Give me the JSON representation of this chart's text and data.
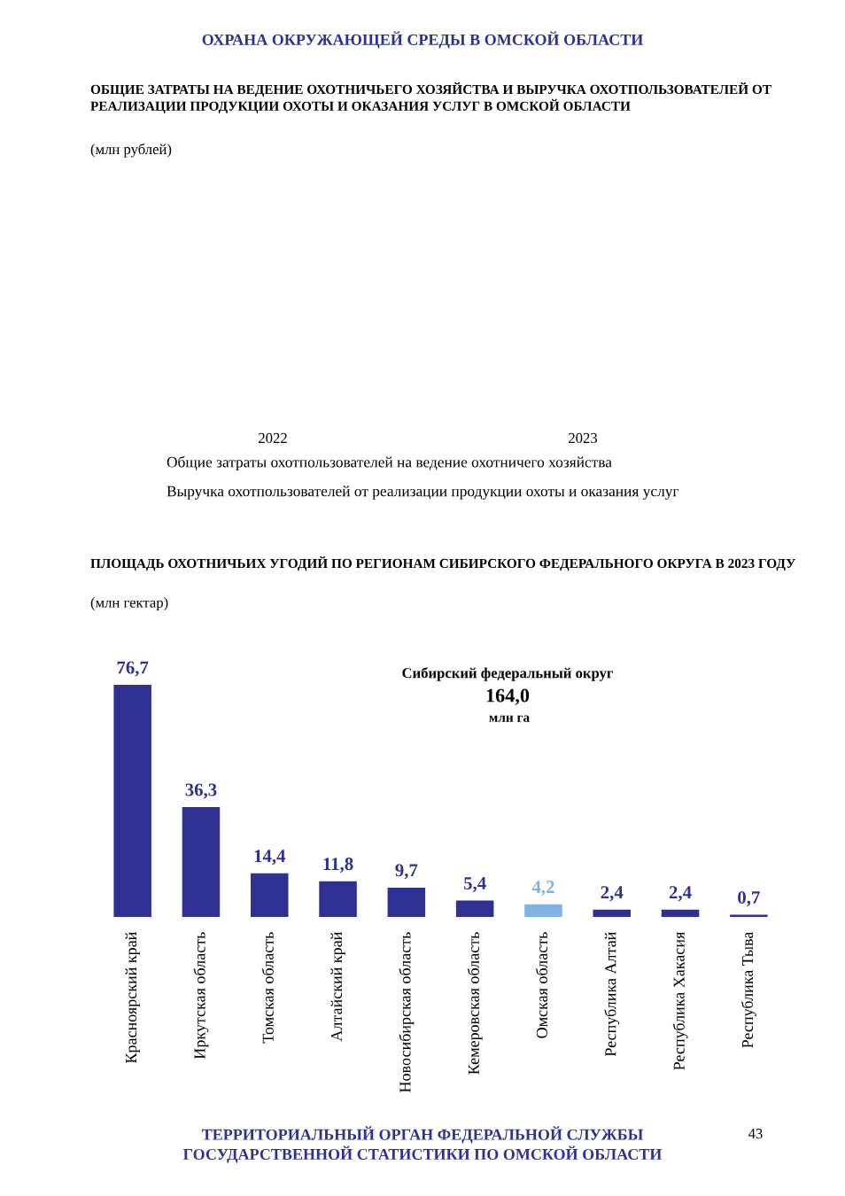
{
  "chart_data": [
    {
      "type": "other",
      "title": "ОБЩИЕ ЗАТРАТЫ НА ВЕДЕНИЕ ОХОТНИЧЬЕГО ХОЗЯЙСТВА И ВЫРУЧКА ОХОТПОЛЬЗОВАТЕЛЕЙ ОТ РЕАЛИЗАЦИИ ПРОДУКЦИИ ОХОТЫ И ОКАЗАНИЯ УСЛУГ В ОМСКОЙ ОБЛАСТИ",
      "subtitle": "(млн рублей)",
      "categories": [
        "2022",
        "2023"
      ],
      "annotations": [
        "ОХРАНА ОКРУЖАЮЩЕЙ СРЕДЫ В ОМСКОЙ ОБЛАСТИ",
        "Общие затраты охотпользователей на ведение охотничего хозяйства",
        "Выручка охотпользователей от реализации продукции охоты и оказания услуг"
      ]
    },
    {
      "type": "bar",
      "title": "ПЛОЩАДЬ ОХОТНИЧЬИХ УГОДИЙ ПО РЕГИОНАМ СИБИРСКОГО ФЕДЕРАЛЬНОГО ОКРУГА В 2023 ГОДУ",
      "subtitle": "(млн гектар)",
      "categories": [
        "Красноярский край",
        "Иркутская область",
        "Томская область",
        "Алтайский край",
        "Новосибирская область",
        "Кемеровская область",
        "Омская область",
        "Республика Алтай",
        "Республика Хакасия",
        "Республика Тыва"
      ],
      "values": [
        76.7,
        36.3,
        14.4,
        11.8,
        9.7,
        5.4,
        4.2,
        2.4,
        2.4,
        0.7
      ],
      "colors": [
        "#2e3192",
        "#2e3192",
        "#2e3192",
        "#2e3192",
        "#2e3192",
        "#2e3192",
        "#7fb2e5",
        "#2e3192",
        "#2e3192",
        "#2e3192"
      ],
      "value_labels": [
        "76,7",
        "36,3",
        "14,4",
        "11,8",
        "9,7",
        "5,4",
        "4,2",
        "2,4",
        "2,4",
        "0,7"
      ],
      "annotations": [
        "Сибирский федеральный округ",
        "164,0",
        "млн га",
        "ТЕРРИТОРИАЛЬНЫЙ ОРГАН ФЕДЕРАЛЬНОЙ СЛУЖБЫ ГОСУДАРСТВЕННОЙ СТАТИСТИКИ ПО ОМСКОЙ ОБЛАСТИ",
        "43"
      ]
    }
  ]
}
